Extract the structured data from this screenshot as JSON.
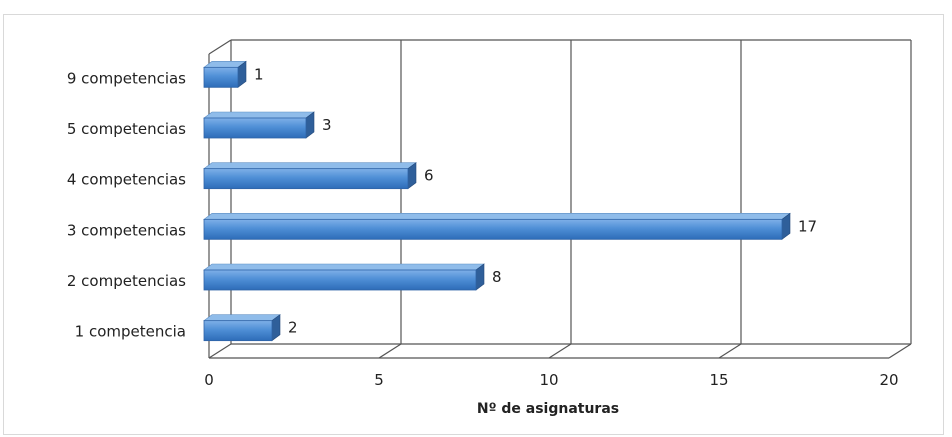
{
  "chart_data": {
    "type": "bar",
    "orientation": "horizontal",
    "categories": [
      "9 competencias",
      "5 competencias",
      "4 competencias",
      "3 competencias",
      "2 competencias",
      "1 competencia"
    ],
    "values": [
      1,
      3,
      6,
      17,
      8,
      2
    ],
    "data_labels": [
      "1",
      "3",
      "6",
      "17",
      "8",
      "2"
    ],
    "title": "",
    "xlabel": "Nº de asignaturas",
    "ylabel": "",
    "xlim": [
      0,
      20
    ],
    "x_ticks": [
      "0",
      "5",
      "10",
      "15",
      "20"
    ],
    "grid": "vertical",
    "legend": "none",
    "style": "3d",
    "colors": {
      "bar_front": "#4f8fd6",
      "bar_top": "#8fbcea",
      "bar_side": "#2f5f9a",
      "grid": "#555555",
      "wall": "#ffffff"
    }
  }
}
